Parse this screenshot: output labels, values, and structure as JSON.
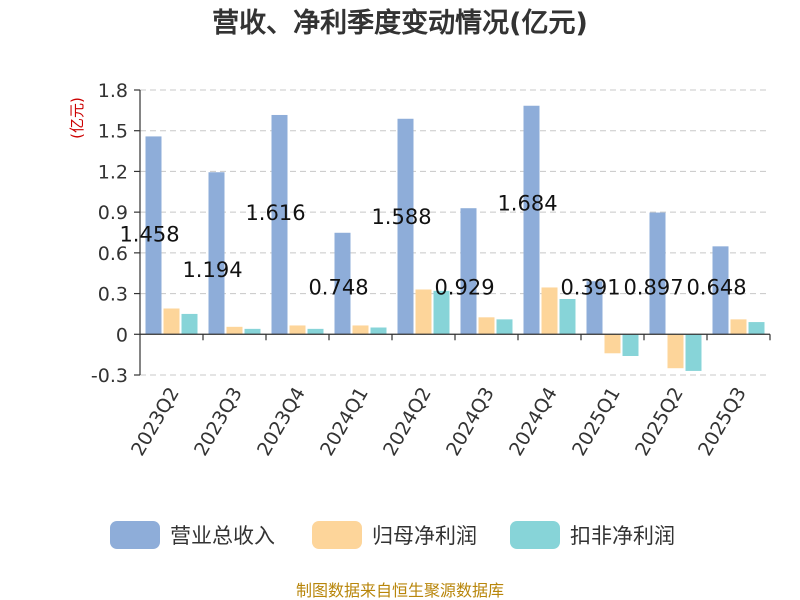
{
  "chart_data": {
    "type": "bar",
    "title": "营收、净利季度变动情况(亿元)",
    "unit_label": "(亿元)",
    "categories": [
      "2023Q2",
      "2023Q3",
      "2023Q4",
      "2024Q1",
      "2024Q2",
      "2024Q3",
      "2024Q4",
      "2025Q1",
      "2025Q2",
      "2025Q3"
    ],
    "series": [
      {
        "name": "营业总收入",
        "color": "#8eadd9",
        "values": [
          1.458,
          1.194,
          1.616,
          0.748,
          1.588,
          0.929,
          1.684,
          0.391,
          0.897,
          0.648
        ]
      },
      {
        "name": "归母净利润",
        "color": "#fdd59a",
        "values": [
          0.19,
          0.055,
          0.065,
          0.065,
          0.33,
          0.125,
          0.345,
          -0.14,
          -0.25,
          0.11
        ]
      },
      {
        "name": "扣非净利润",
        "color": "#87d4d8",
        "values": [
          0.15,
          0.04,
          0.04,
          0.05,
          0.32,
          0.11,
          0.26,
          -0.16,
          -0.27,
          0.09
        ]
      }
    ],
    "data_labels": [
      "1.458",
      "1.194",
      "1.616",
      "0.748",
      "1.588",
      "0.929",
      "1.684",
      "0.391",
      "0.897",
      "0.648"
    ],
    "yticks": [
      "1.8",
      "1.5",
      "1.2",
      "0.9",
      "0.6",
      "0.3",
      "0",
      "-0.3"
    ],
    "ylim": [
      -0.3,
      1.8
    ],
    "grid": true,
    "legend_position": "bottom"
  },
  "source_text": "制图数据来自恒生聚源数据库"
}
